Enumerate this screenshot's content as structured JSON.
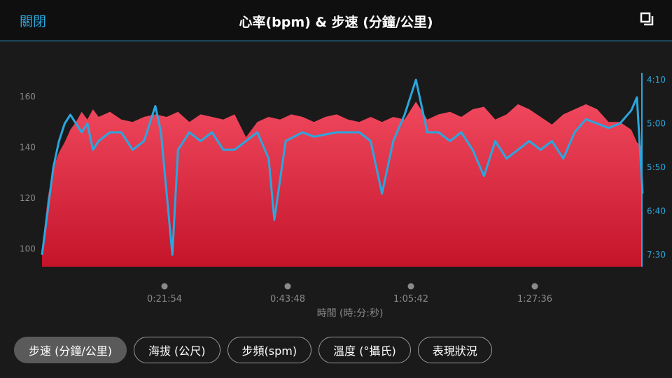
{
  "header": {
    "close_label": "關閉",
    "title": "心率(bpm) & 步速 (分鐘/公里)"
  },
  "tabs": [
    {
      "label": "步速 (分鐘/公里)",
      "active": true
    },
    {
      "label": "海拔 (公尺)",
      "active": false
    },
    {
      "label": "步頻(spm)",
      "active": false
    },
    {
      "label": "溫度 (°攝氏)",
      "active": false
    },
    {
      "label": "表現狀況",
      "active": false
    }
  ],
  "colors": {
    "accent": "#2aa7de",
    "heart_rate_top": "#f0485e",
    "heart_rate_bottom": "#c4142a"
  },
  "chart_data": {
    "type": "area",
    "xlabel": "時間 (時:分:秒)",
    "x_ticks": [
      "0:21:54",
      "0:43:48",
      "1:05:42",
      "1:27:36"
    ],
    "left_axis": {
      "ticks": [
        100,
        120,
        140,
        160
      ]
    },
    "right_axis": {
      "ticks": [
        "4:10",
        "5:00",
        "5:50",
        "6:40",
        "7:30"
      ]
    },
    "series": [
      {
        "name": "心率",
        "color": "#f0485e",
        "points": [
          [
            0,
            100
          ],
          [
            1,
            120
          ],
          [
            2,
            132
          ],
          [
            3,
            138
          ],
          [
            4,
            142
          ],
          [
            5,
            147
          ],
          [
            6,
            150
          ],
          [
            7,
            154
          ],
          [
            8,
            151
          ],
          [
            9,
            155
          ],
          [
            10,
            152
          ],
          [
            12,
            154
          ],
          [
            14,
            151
          ],
          [
            16,
            150
          ],
          [
            18,
            152
          ],
          [
            20,
            153
          ],
          [
            22,
            152
          ],
          [
            24,
            154
          ],
          [
            26,
            150
          ],
          [
            28,
            153
          ],
          [
            30,
            152
          ],
          [
            32,
            151
          ],
          [
            34,
            153
          ],
          [
            36,
            144
          ],
          [
            38,
            150
          ],
          [
            40,
            152
          ],
          [
            42,
            151
          ],
          [
            44,
            153
          ],
          [
            46,
            152
          ],
          [
            48,
            150
          ],
          [
            50,
            152
          ],
          [
            52,
            153
          ],
          [
            54,
            151
          ],
          [
            56,
            150
          ],
          [
            58,
            152
          ],
          [
            60,
            150
          ],
          [
            62,
            152
          ],
          [
            64,
            151
          ],
          [
            66,
            158
          ],
          [
            68,
            151
          ],
          [
            70,
            153
          ],
          [
            72,
            154
          ],
          [
            74,
            152
          ],
          [
            76,
            155
          ],
          [
            78,
            156
          ],
          [
            80,
            151
          ],
          [
            82,
            153
          ],
          [
            84,
            157
          ],
          [
            86,
            155
          ],
          [
            88,
            152
          ],
          [
            90,
            149
          ],
          [
            92,
            153
          ],
          [
            94,
            155
          ],
          [
            96,
            157
          ],
          [
            98,
            155
          ],
          [
            100,
            150
          ],
          [
            102,
            150
          ],
          [
            104,
            147
          ],
          [
            105,
            142
          ],
          [
            106,
            140
          ]
        ]
      },
      {
        "name": "步速",
        "color": "#2aa7de",
        "points": [
          [
            0,
            "7:30"
          ],
          [
            1,
            "6:40"
          ],
          [
            2,
            "5:50"
          ],
          [
            3,
            "5:20"
          ],
          [
            4,
            "5:00"
          ],
          [
            5,
            "4:50"
          ],
          [
            6,
            "5:00"
          ],
          [
            7,
            "5:10"
          ],
          [
            8,
            "5:00"
          ],
          [
            9,
            "5:30"
          ],
          [
            10,
            "5:20"
          ],
          [
            12,
            "5:10"
          ],
          [
            14,
            "5:10"
          ],
          [
            16,
            "5:30"
          ],
          [
            18,
            "5:20"
          ],
          [
            20,
            "4:40"
          ],
          [
            21,
            "5:10"
          ],
          [
            23,
            "7:30"
          ],
          [
            24,
            "5:30"
          ],
          [
            26,
            "5:10"
          ],
          [
            28,
            "5:20"
          ],
          [
            30,
            "5:10"
          ],
          [
            32,
            "5:30"
          ],
          [
            34,
            "5:30"
          ],
          [
            36,
            "5:20"
          ],
          [
            38,
            "5:10"
          ],
          [
            40,
            "5:40"
          ],
          [
            41,
            "6:50"
          ],
          [
            43,
            "5:20"
          ],
          [
            46,
            "5:10"
          ],
          [
            48,
            "5:15"
          ],
          [
            52,
            "5:10"
          ],
          [
            56,
            "5:10"
          ],
          [
            58,
            "5:20"
          ],
          [
            60,
            "6:20"
          ],
          [
            62,
            "5:20"
          ],
          [
            64,
            "4:50"
          ],
          [
            66,
            "4:10"
          ],
          [
            68,
            "5:10"
          ],
          [
            70,
            "5:10"
          ],
          [
            72,
            "5:20"
          ],
          [
            74,
            "5:10"
          ],
          [
            76,
            "5:30"
          ],
          [
            78,
            "6:00"
          ],
          [
            80,
            "5:20"
          ],
          [
            82,
            "5:40"
          ],
          [
            84,
            "5:30"
          ],
          [
            86,
            "5:20"
          ],
          [
            88,
            "5:30"
          ],
          [
            90,
            "5:20"
          ],
          [
            92,
            "5:40"
          ],
          [
            94,
            "5:10"
          ],
          [
            96,
            "4:55"
          ],
          [
            98,
            "5:00"
          ],
          [
            100,
            "5:05"
          ],
          [
            102,
            "5:00"
          ],
          [
            104,
            "4:45"
          ],
          [
            105,
            "4:30"
          ],
          [
            106,
            "6:20"
          ]
        ]
      }
    ],
    "legend": "none",
    "grid": false
  }
}
